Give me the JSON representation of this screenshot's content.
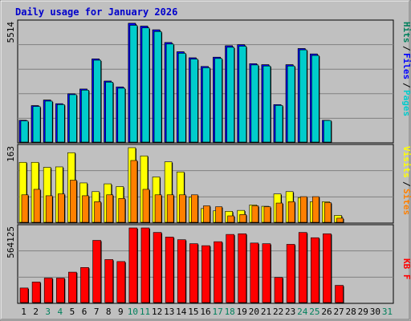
{
  "chart_data": {
    "type": "bar",
    "title": "Daily usage for January 2026",
    "days": [
      "1",
      "2",
      "3",
      "4",
      "5",
      "6",
      "7",
      "8",
      "9",
      "10",
      "11",
      "12",
      "13",
      "14",
      "15",
      "16",
      "17",
      "18",
      "19",
      "20",
      "21",
      "22",
      "23",
      "24",
      "25",
      "26",
      "27",
      "28",
      "29",
      "30",
      "31"
    ],
    "weekend_days": [
      3,
      4,
      10,
      11,
      17,
      18,
      24,
      25,
      31
    ],
    "colors": {
      "frame_bg": "#c0c0c0",
      "plot_bg": "#c0c0c0",
      "title": "#0000cc",
      "weekday_label": "#000000",
      "weekend_label": "#00805c",
      "hits": "#00805c",
      "files": "#0000ff",
      "pages": "#00cccc",
      "visits": "#ffff00",
      "sites": "#ff8000",
      "kbytes": "#ff0000"
    },
    "panels": {
      "top": {
        "ymax_label": "5514",
        "ymax": 5514,
        "legend": [
          {
            "label": "Hits",
            "color": "#00805c"
          },
          {
            "label": "Files",
            "color": "#0000ff"
          },
          {
            "label": "Pages",
            "color": "#00cccc"
          }
        ],
        "series": [
          {
            "name": "Hits",
            "values": [
              1010,
              1690,
              1950,
              1780,
              2240,
              2460,
              3860,
              2830,
              2560,
              5514,
              5380,
              5210,
              4620,
              4190,
              3910,
              3510,
              3940,
              4470,
              4520,
              3640,
              3590,
              1740,
              3590,
              4340,
              4090,
              null,
              null,
              null,
              null,
              null,
              null
            ]
          },
          {
            "name": "Files",
            "values": [
              1010,
              1690,
              1950,
              1780,
              2240,
              2460,
              3860,
              2830,
              2560,
              5514,
              5380,
              5210,
              4620,
              4190,
              3910,
              3510,
              3940,
              4470,
              4520,
              3640,
              3590,
              1740,
              3590,
              4340,
              4090,
              1010,
              null,
              null,
              null,
              null,
              null
            ]
          },
          {
            "name": "Pages",
            "values": [
              980,
              1650,
              1900,
              1740,
              2200,
              2410,
              3800,
              2780,
              2500,
              5420,
              5300,
              5130,
              4550,
              4120,
              3850,
              3450,
              3880,
              4400,
              4450,
              3580,
              3530,
              1700,
              3530,
              4280,
              4020,
              1000,
              null,
              null,
              null,
              null,
              null
            ]
          }
        ]
      },
      "middle": {
        "ymax_label": "163",
        "ymax": 163,
        "legend": [
          {
            "label": "Visits",
            "color": "#ffff00"
          },
          {
            "label": "/",
            "color": "#000000"
          },
          {
            "label": "Sites",
            "color": "#ff8000"
          }
        ],
        "series": [
          {
            "name": "Visits",
            "values": [
              131,
              131,
              120,
              121,
              152,
              86,
              67,
              84,
              78,
              163,
              145,
              99,
              132,
              110,
              55,
              30,
              25,
              24,
              26,
              38,
              35,
              62,
              67,
              54,
              45,
              45,
              15,
              null,
              null,
              null,
              null
            ]
          },
          {
            "name": "Sites",
            "values": [
              60,
              72,
              58,
              62,
              92,
              58,
              45,
              60,
              52,
              135,
              72,
              60,
              60,
              60,
              60,
              36,
              34,
              14,
              17,
              36,
              34,
              42,
              45,
              56,
              56,
              43,
              9,
              null,
              null,
              null,
              null
            ]
          }
        ]
      },
      "bottom": {
        "ymax_label": "564125",
        "ymax": 564125,
        "legend": [
          {
            "label": "KB F",
            "color": "#ff0000"
          }
        ],
        "series": [
          {
            "name": "KB F",
            "values": [
              110000,
              155000,
              185000,
              185000,
              230000,
              265000,
              470000,
              325000,
              310000,
              564125,
              564125,
              530000,
              495000,
              475000,
              445000,
              430000,
              460000,
              515000,
              520000,
              450000,
              445000,
              190000,
              440000,
              530000,
              490000,
              520000,
              130000,
              null,
              null,
              null,
              null
            ]
          }
        ]
      }
    }
  }
}
